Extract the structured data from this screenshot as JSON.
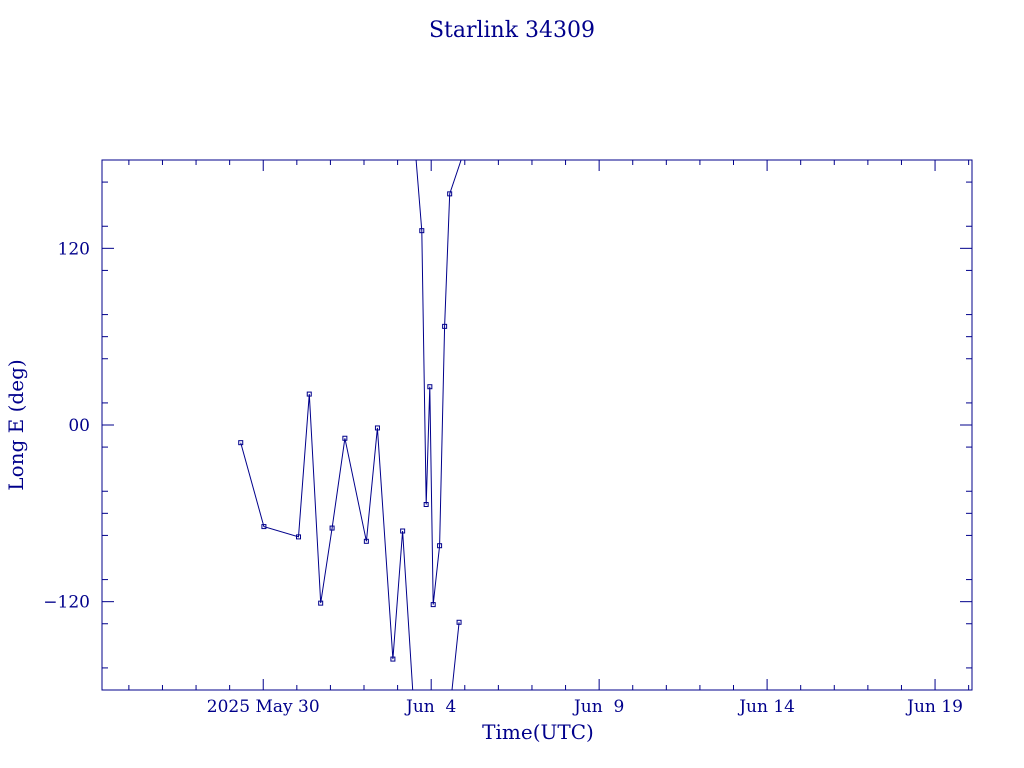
{
  "chart_data": {
    "type": "line",
    "title": "Starlink 34309",
    "xlabel": "Time(UTC)",
    "ylabel": "Long E (deg)",
    "x_unit": "days (2025 May 30 = 0)",
    "xlim": [
      -4.8,
      21.1
    ],
    "ylim": [
      -180,
      180
    ],
    "x_ticks": [
      {
        "x": 0,
        "label": "2025 May 30"
      },
      {
        "x": 5,
        "label": "Jun  4"
      },
      {
        "x": 10,
        "label": "Jun  9"
      },
      {
        "x": 15,
        "label": "Jun 14"
      },
      {
        "x": 20,
        "label": "Jun 19"
      }
    ],
    "y_ticks": [
      {
        "y": 120,
        "label": "120"
      },
      {
        "y": 0,
        "label": "00"
      },
      {
        "y": -120,
        "label": "−120"
      }
    ],
    "segments": [
      [
        [
          -0.67,
          -12
        ],
        [
          0.02,
          -69
        ],
        [
          1.05,
          -76
        ],
        [
          1.37,
          21
        ],
        [
          1.71,
          -121
        ],
        [
          2.05,
          -70
        ],
        [
          2.43,
          -9
        ],
        [
          3.07,
          -79
        ],
        [
          3.4,
          -2
        ],
        [
          3.86,
          -159
        ],
        [
          4.15,
          -72
        ],
        [
          4.45,
          -180
        ]
      ],
      [
        [
          4.55,
          180
        ],
        [
          4.72,
          132
        ],
        [
          4.85,
          -54
        ],
        [
          4.96,
          26
        ],
        [
          5.06,
          -122
        ],
        [
          5.25,
          -82
        ],
        [
          5.4,
          67
        ],
        [
          5.55,
          157
        ],
        [
          5.89,
          180
        ]
      ],
      [
        [
          5.62,
          -180
        ],
        [
          5.83,
          -134
        ]
      ]
    ]
  }
}
